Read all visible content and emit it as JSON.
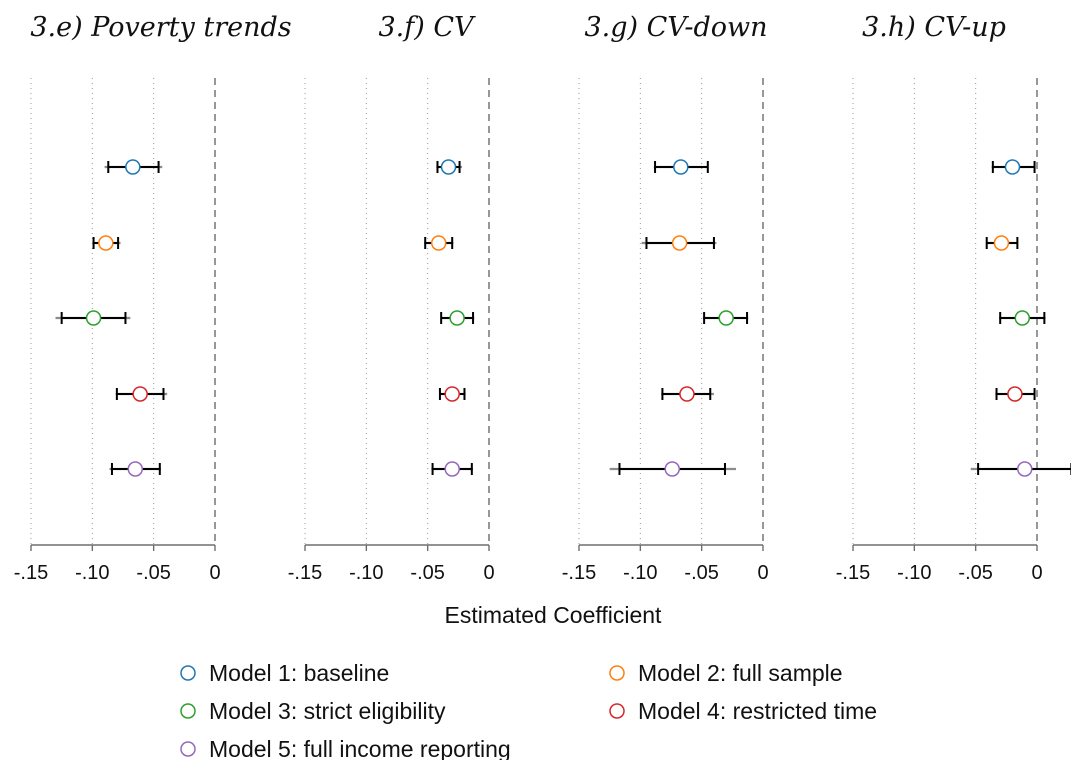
{
  "chart_data": {
    "type": "scatter",
    "subtype": "coefficient-plot",
    "xlabel": "Estimated Coefficient",
    "xticks": [
      "-.15",
      "-.10",
      "-.05",
      "0"
    ],
    "xlim": [
      -0.15,
      0
    ],
    "reference_line": 0,
    "grid": "vertical dotted",
    "legend_position": "bottom",
    "series": [
      {
        "name": "Model 1: baseline",
        "color": "#1f77b4"
      },
      {
        "name": "Model 2: full sample",
        "color": "#ff7f0e"
      },
      {
        "name": "Model 3: strict eligibility",
        "color": "#2ca02c"
      },
      {
        "name": "Model 4: restricted time",
        "color": "#d62728"
      },
      {
        "name": "Model 5: full income reporting",
        "color": "#9467bd"
      }
    ],
    "panels": [
      {
        "title": "3.e) Poverty trends",
        "estimates": [
          {
            "model": 1,
            "coef": -0.067,
            "ci95": [
              -0.09,
              -0.043
            ],
            "ci90": [
              -0.087,
              -0.046
            ]
          },
          {
            "model": 2,
            "coef": -0.089,
            "ci95": [
              -0.1,
              -0.077
            ],
            "ci90": [
              -0.099,
              -0.079
            ]
          },
          {
            "model": 3,
            "coef": -0.099,
            "ci95": [
              -0.13,
              -0.069
            ],
            "ci90": [
              -0.125,
              -0.073
            ]
          },
          {
            "model": 4,
            "coef": -0.061,
            "ci95": [
              -0.081,
              -0.039
            ],
            "ci90": [
              -0.08,
              -0.042
            ]
          },
          {
            "model": 5,
            "coef": -0.065,
            "ci95": [
              -0.086,
              -0.044
            ],
            "ci90": [
              -0.084,
              -0.045
            ]
          }
        ]
      },
      {
        "title": "3.f) CV",
        "estimates": [
          {
            "model": 1,
            "coef": -0.033,
            "ci95": [
              -0.043,
              -0.022
            ],
            "ci90": [
              -0.042,
              -0.024
            ]
          },
          {
            "model": 2,
            "coef": -0.041,
            "ci95": [
              -0.053,
              -0.029
            ],
            "ci90": [
              -0.052,
              -0.03
            ]
          },
          {
            "model": 3,
            "coef": -0.026,
            "ci95": [
              -0.039,
              -0.012
            ],
            "ci90": [
              -0.039,
              -0.013
            ]
          },
          {
            "model": 4,
            "coef": -0.03,
            "ci95": [
              -0.04,
              -0.019
            ],
            "ci90": [
              -0.04,
              -0.02
            ]
          },
          {
            "model": 5,
            "coef": -0.03,
            "ci95": [
              -0.047,
              -0.013
            ],
            "ci90": [
              -0.046,
              -0.014
            ]
          }
        ]
      },
      {
        "title": "3.g) CV-down",
        "estimates": [
          {
            "model": 1,
            "coef": -0.067,
            "ci95": [
              -0.089,
              -0.045
            ],
            "ci90": [
              -0.088,
              -0.045
            ]
          },
          {
            "model": 2,
            "coef": -0.068,
            "ci95": [
              -0.099,
              -0.038
            ],
            "ci90": [
              -0.095,
              -0.04
            ]
          },
          {
            "model": 3,
            "coef": -0.03,
            "ci95": [
              -0.049,
              -0.012
            ],
            "ci90": [
              -0.048,
              -0.013
            ]
          },
          {
            "model": 4,
            "coef": -0.062,
            "ci95": [
              -0.083,
              -0.04
            ],
            "ci90": [
              -0.082,
              -0.043
            ]
          },
          {
            "model": 5,
            "coef": -0.074,
            "ci95": [
              -0.125,
              -0.022
            ],
            "ci90": [
              -0.117,
              -0.031
            ]
          }
        ]
      },
      {
        "title": "3.h) CV-up",
        "estimates": [
          {
            "model": 1,
            "coef": -0.02,
            "ci95": [
              -0.037,
              -0.002
            ],
            "ci90": [
              -0.036,
              -0.002
            ]
          },
          {
            "model": 2,
            "coef": -0.029,
            "ci95": [
              -0.041,
              -0.016
            ],
            "ci90": [
              -0.041,
              -0.016
            ]
          },
          {
            "model": 3,
            "coef": -0.012,
            "ci95": [
              -0.031,
              0.007
            ],
            "ci90": [
              -0.03,
              0.006
            ]
          },
          {
            "model": 4,
            "coef": -0.018,
            "ci95": [
              -0.034,
              -0.002
            ],
            "ci90": [
              -0.033,
              -0.002
            ]
          },
          {
            "model": 5,
            "coef": -0.01,
            "ci95": [
              -0.054,
              0.03
            ],
            "ci90": [
              -0.048,
              0.028
            ]
          }
        ]
      }
    ]
  }
}
